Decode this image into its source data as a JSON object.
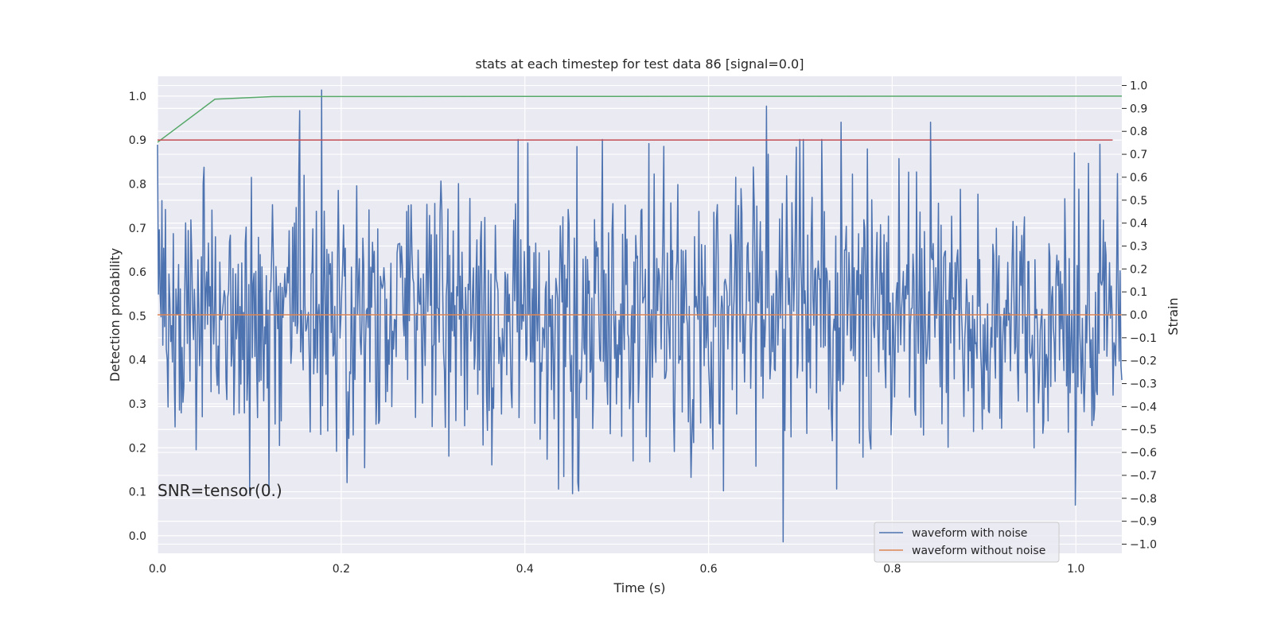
{
  "chart_data": {
    "type": "line",
    "title": "stats at each timestep for test data 86 [signal=0.0]",
    "xlabel": "Time (s)",
    "ylabel_left": "Detection probability",
    "ylabel_right": "Strain",
    "xlim": [
      0.0,
      1.05
    ],
    "ylim_left": [
      -0.04,
      1.045
    ],
    "ylim_right": [
      -1.04,
      1.04
    ],
    "x_ticks": [
      0.0,
      0.2,
      0.4,
      0.6,
      0.8,
      1.0
    ],
    "x_tick_labels": [
      "0.0",
      "0.2",
      "0.4",
      "0.6",
      "0.8",
      "1.0"
    ],
    "y_left_ticks": [
      0.0,
      0.1,
      0.2,
      0.3,
      0.4,
      0.5,
      0.6,
      0.7,
      0.8,
      0.9,
      1.0
    ],
    "y_left_tick_labels": [
      "0.0",
      "0.1",
      "0.2",
      "0.3",
      "0.4",
      "0.5",
      "0.6",
      "0.7",
      "0.8",
      "0.9",
      "1.0"
    ],
    "y_right_ticks": [
      -1.0,
      -0.9,
      -0.8,
      -0.7,
      -0.6,
      -0.5,
      -0.4,
      -0.3,
      -0.2,
      -0.1,
      0.0,
      0.1,
      0.2,
      0.3,
      0.4,
      0.5,
      0.6,
      0.7,
      0.8,
      0.9,
      1.0
    ],
    "y_right_tick_labels": [
      "−1.0",
      "−0.9",
      "−0.8",
      "−0.7",
      "−0.6",
      "−0.5",
      "−0.4",
      "−0.3",
      "−0.2",
      "−0.1",
      "0.0",
      "0.1",
      "0.2",
      "0.3",
      "0.4",
      "0.5",
      "0.6",
      "0.7",
      "0.8",
      "0.9",
      "1.0"
    ],
    "grid": true,
    "legend_placement": "lower-right",
    "series": [
      {
        "name": "waveform with noise",
        "axis": "right",
        "color": "#4c72b0",
        "x_range": [
          0.0,
          1.05
        ],
        "num_points": 1100,
        "random_seed": 86,
        "noise_std": 0.3,
        "min": -1.0,
        "max": 0.98,
        "peaks": [
          [
            0.155,
            0.89
          ],
          [
            0.179,
            0.98
          ],
          [
            0.663,
            0.91
          ],
          [
            0.744,
            0.84
          ],
          [
            0.842,
            0.84
          ],
          [
            0.681,
            -0.99
          ],
          [
            0.999,
            -0.83
          ]
        ]
      },
      {
        "name": "waveform without noise",
        "axis": "right",
        "color": "#dd8452",
        "x": [
          0.0,
          1.05
        ],
        "y": [
          0.0,
          0.0
        ]
      },
      {
        "axis": "left",
        "color": "#55a868",
        "x": [
          0.0,
          0.0625,
          0.125,
          1.05
        ],
        "y": [
          0.895,
          0.993,
          0.999,
          1.0
        ]
      },
      {
        "axis": "left",
        "color": "#c44e52",
        "x": [
          0.0,
          1.04
        ],
        "y": [
          0.9,
          0.9
        ]
      }
    ],
    "annotation": {
      "text": "SNR=tensor(0.)",
      "x": 0.0,
      "y": 0.09
    }
  }
}
